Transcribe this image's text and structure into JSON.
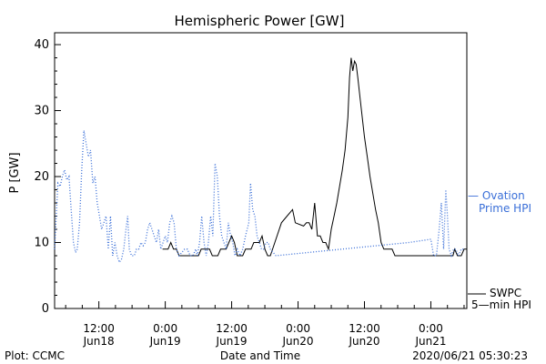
{
  "chart_data": {
    "type": "line",
    "title": "Hemispheric Power [GW]",
    "ylabel": "P [GW]",
    "xlabel": "Date and Time",
    "ylim": [
      0,
      42
    ],
    "yticks": [
      0,
      10,
      20,
      30,
      40
    ],
    "x_unit": "hours since 2020-06-17 00:00 UT",
    "xlim": [
      4,
      78.5
    ],
    "xticks": [
      {
        "x": 12,
        "time": "12:00",
        "date": "Jun18"
      },
      {
        "x": 24,
        "time": "0:00",
        "date": "Jun19"
      },
      {
        "x": 36,
        "time": "12:00",
        "date": "Jun19"
      },
      {
        "x": 48,
        "time": "0:00",
        "date": "Jun20"
      },
      {
        "x": 60,
        "time": "12:00",
        "date": "Jun20"
      },
      {
        "x": 72,
        "time": "0:00",
        "date": "Jun21"
      }
    ],
    "series": [
      {
        "name": "SWPC 5-min HPI",
        "legend_lines": [
          "SWPC",
          "5—min HPI"
        ],
        "style": "solid",
        "color": "#000000",
        "points": [
          [
            23.5,
            9
          ],
          [
            24.5,
            9
          ],
          [
            25,
            10
          ],
          [
            25.5,
            9
          ],
          [
            26,
            9
          ],
          [
            26.5,
            8
          ],
          [
            30,
            8
          ],
          [
            30.5,
            9
          ],
          [
            32,
            9
          ],
          [
            32.5,
            8
          ],
          [
            33.5,
            8
          ],
          [
            34,
            9
          ],
          [
            35,
            9
          ],
          [
            35.5,
            10
          ],
          [
            36,
            11
          ],
          [
            36.5,
            10
          ],
          [
            37,
            8
          ],
          [
            38,
            8
          ],
          [
            38.5,
            9
          ],
          [
            39.5,
            9
          ],
          [
            40,
            10
          ],
          [
            41,
            10
          ],
          [
            41.5,
            11
          ],
          [
            42,
            9
          ],
          [
            42.5,
            8
          ],
          [
            43,
            8
          ],
          [
            43.8,
            10
          ],
          [
            45,
            13
          ],
          [
            46,
            14
          ],
          [
            47,
            15
          ],
          [
            47.5,
            13
          ],
          [
            49,
            12.5
          ],
          [
            49.5,
            13
          ],
          [
            50,
            13
          ],
          [
            50.5,
            12
          ],
          [
            51,
            16
          ],
          [
            51.5,
            11
          ],
          [
            52,
            11
          ],
          [
            52.5,
            10
          ],
          [
            53,
            10
          ],
          [
            53.5,
            9
          ],
          [
            54,
            12
          ],
          [
            54.5,
            14
          ],
          [
            55,
            16
          ],
          [
            56,
            21
          ],
          [
            56.5,
            24
          ],
          [
            57,
            29
          ],
          [
            57.3,
            35
          ],
          [
            57.6,
            38
          ],
          [
            57.9,
            36
          ],
          [
            58.2,
            37.5
          ],
          [
            58.5,
            37
          ],
          [
            58.8,
            35
          ],
          [
            59.2,
            32
          ],
          [
            60,
            26
          ],
          [
            60.5,
            23
          ],
          [
            61,
            20
          ],
          [
            62,
            15
          ],
          [
            62.5,
            13
          ],
          [
            63,
            10
          ],
          [
            63.5,
            9
          ],
          [
            65,
            9
          ],
          [
            65.5,
            8
          ],
          [
            76,
            8
          ],
          [
            76.3,
            9
          ],
          [
            76.8,
            8
          ],
          [
            77.5,
            8
          ],
          [
            78,
            9
          ],
          [
            78.5,
            9
          ]
        ]
      },
      {
        "name": "Ovation Prime HPI",
        "legend_lines": [
          "— Ovation",
          "Prime HPI"
        ],
        "style": "dotted",
        "color": "#3a6fd8",
        "points": [
          [
            4,
            9
          ],
          [
            4.3,
            14
          ],
          [
            4.6,
            19
          ],
          [
            5,
            18.5
          ],
          [
            5.4,
            20
          ],
          [
            5.8,
            21
          ],
          [
            6.2,
            19.5
          ],
          [
            6.6,
            20
          ],
          [
            7,
            15
          ],
          [
            7.4,
            10
          ],
          [
            7.8,
            8.5
          ],
          [
            8.1,
            9
          ],
          [
            8.5,
            13
          ],
          [
            8.9,
            21
          ],
          [
            9.3,
            27
          ],
          [
            9.7,
            25
          ],
          [
            10.1,
            23
          ],
          [
            10.5,
            24
          ],
          [
            10.9,
            19
          ],
          [
            11.3,
            20
          ],
          [
            11.7,
            16
          ],
          [
            12.1,
            14
          ],
          [
            12.5,
            12
          ],
          [
            12.9,
            13
          ],
          [
            13.3,
            14
          ],
          [
            13.7,
            9
          ],
          [
            14.1,
            14
          ],
          [
            14.5,
            8
          ],
          [
            14.9,
            10
          ],
          [
            15.3,
            8
          ],
          [
            15.7,
            7
          ],
          [
            16.1,
            7.5
          ],
          [
            16.5,
            9
          ],
          [
            16.9,
            12
          ],
          [
            17.2,
            14
          ],
          [
            17.5,
            9
          ],
          [
            17.9,
            8
          ],
          [
            18.4,
            8
          ],
          [
            18.8,
            9
          ],
          [
            19.2,
            9
          ],
          [
            19.6,
            10
          ],
          [
            20,
            9.5
          ],
          [
            20.4,
            10
          ],
          [
            20.8,
            12
          ],
          [
            21.2,
            13
          ],
          [
            21.6,
            12
          ],
          [
            22,
            11
          ],
          [
            22.4,
            10
          ],
          [
            22.8,
            12
          ],
          [
            23.2,
            9
          ],
          [
            23.6,
            10
          ],
          [
            24,
            11
          ],
          [
            24.4,
            10
          ],
          [
            24.8,
            13
          ],
          [
            25.2,
            14
          ],
          [
            25.6,
            13
          ],
          [
            26,
            9
          ],
          [
            26.5,
            8
          ],
          [
            27,
            8.5
          ],
          [
            27.5,
            9
          ],
          [
            28,
            9
          ],
          [
            28.5,
            8
          ],
          [
            29,
            8
          ],
          [
            29.5,
            9
          ],
          [
            29.8,
            8
          ],
          [
            30.2,
            10
          ],
          [
            30.6,
            14
          ],
          [
            31,
            10
          ],
          [
            31.4,
            8
          ],
          [
            31.8,
            10
          ],
          [
            32.2,
            14
          ],
          [
            32.6,
            11
          ],
          [
            33,
            22
          ],
          [
            33.4,
            20
          ],
          [
            33.8,
            14
          ],
          [
            34.2,
            11
          ],
          [
            34.6,
            10
          ],
          [
            35,
            9
          ],
          [
            35.4,
            13
          ],
          [
            35.8,
            11
          ],
          [
            36.2,
            10
          ],
          [
            36.6,
            8
          ],
          [
            37,
            9
          ],
          [
            37.5,
            8
          ],
          [
            38,
            9
          ],
          [
            38.5,
            11
          ],
          [
            38.8,
            12
          ],
          [
            39.1,
            13
          ],
          [
            39.4,
            19
          ],
          [
            39.8,
            15
          ],
          [
            40.2,
            14
          ],
          [
            40.6,
            11
          ],
          [
            41,
            10
          ],
          [
            41.4,
            9
          ],
          [
            41.8,
            9
          ],
          [
            42.2,
            10
          ],
          [
            42.6,
            10
          ],
          [
            43,
            9
          ],
          [
            43.5,
            8.5
          ],
          [
            44,
            8
          ],
          [
            62,
            9.5
          ],
          [
            68,
            10
          ],
          [
            72,
            10.5
          ],
          [
            72.5,
            8
          ],
          [
            73,
            8
          ],
          [
            73.5,
            12
          ],
          [
            73.9,
            16
          ],
          [
            74.3,
            9
          ],
          [
            74.7,
            18
          ],
          [
            75,
            14
          ],
          [
            75.3,
            9
          ],
          [
            75.7,
            8
          ],
          [
            76.1,
            9
          ],
          [
            76.5,
            9
          ],
          [
            77,
            8
          ],
          [
            77.5,
            9
          ],
          [
            78,
            9
          ]
        ]
      }
    ],
    "grid": false,
    "legend": "right"
  },
  "footer": {
    "credit": "Plot: CCMC",
    "timestamp": "2020/06/21 05:30:23"
  }
}
